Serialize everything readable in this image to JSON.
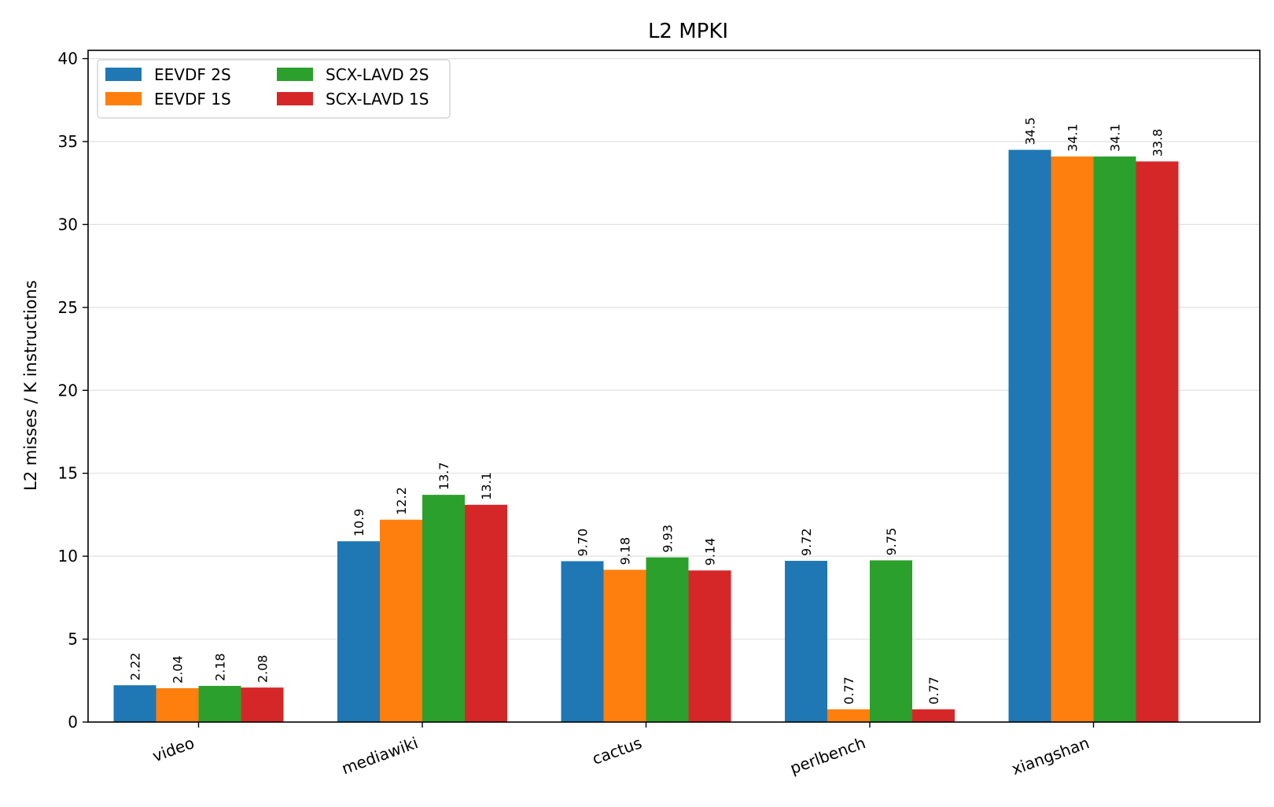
{
  "chart_data": {
    "type": "bar",
    "title": "L2 MPKI",
    "xlabel": "",
    "ylabel": "L2 misses / K instructions",
    "ylim": [
      0,
      40.5
    ],
    "yticks": [
      0,
      5,
      10,
      15,
      20,
      25,
      30,
      35,
      40
    ],
    "grid": "y",
    "legend_placement": "top-left",
    "legend_columns": 2,
    "categories": [
      "video",
      "mediawiki",
      "cactus",
      "perlbench",
      "xiangshan"
    ],
    "series": [
      {
        "name": "EEVDF 2S",
        "color": "#1f77b4",
        "values": [
          2.22,
          10.9,
          9.7,
          9.72,
          34.5
        ],
        "labels": [
          "2.22",
          "10.9",
          "9.70",
          "9.72",
          "34.5"
        ]
      },
      {
        "name": "EEVDF 1S",
        "color": "#ff7f0e",
        "values": [
          2.04,
          12.2,
          9.18,
          0.77,
          34.1
        ],
        "labels": [
          "2.04",
          "12.2",
          "9.18",
          "0.77",
          "34.1"
        ]
      },
      {
        "name": "SCX-LAVD 2S",
        "color": "#2ca02c",
        "values": [
          2.18,
          13.7,
          9.93,
          9.75,
          34.1
        ],
        "labels": [
          "2.18",
          "13.7",
          "9.93",
          "9.75",
          "34.1"
        ]
      },
      {
        "name": "SCX-LAVD 1S",
        "color": "#d62728",
        "values": [
          2.08,
          13.1,
          9.14,
          0.77,
          33.8
        ],
        "labels": [
          "2.08",
          "13.1",
          "9.14",
          "0.77",
          "33.8"
        ]
      }
    ]
  }
}
